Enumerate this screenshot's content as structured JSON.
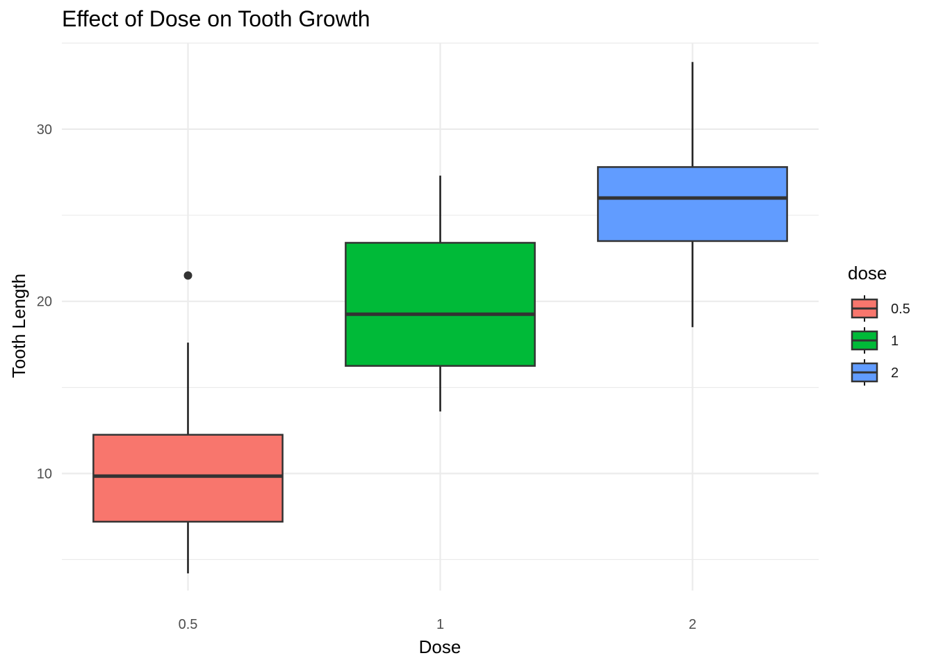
{
  "chart_data": {
    "type": "boxplot",
    "title": "Effect of Dose on Tooth Growth",
    "xlabel": "Dose",
    "ylabel": "Tooth Length",
    "categories": [
      "0.5",
      "1",
      "2"
    ],
    "y_ticks": [
      10,
      20,
      30
    ],
    "ylim": [
      3.2,
      35.0
    ],
    "grid": true,
    "legend": {
      "title": "dose",
      "position": "right",
      "entries": [
        "0.5",
        "1",
        "2"
      ]
    },
    "colors": [
      "#F8766D",
      "#00BA38",
      "#619CFF"
    ],
    "boxes": [
      {
        "category": "0.5",
        "color": "#F8766D",
        "whisker_low": 4.2,
        "q1": 7.2,
        "median": 9.85,
        "q3": 12.25,
        "whisker_high": 17.6,
        "outliers": [
          21.5
        ]
      },
      {
        "category": "1",
        "color": "#00BA38",
        "whisker_low": 13.6,
        "q1": 16.25,
        "median": 19.25,
        "q3": 23.4,
        "whisker_high": 27.3,
        "outliers": []
      },
      {
        "category": "2",
        "color": "#619CFF",
        "whisker_low": 18.5,
        "q1": 23.5,
        "median": 26.0,
        "q3": 27.8,
        "whisker_high": 33.9,
        "outliers": []
      }
    ]
  }
}
